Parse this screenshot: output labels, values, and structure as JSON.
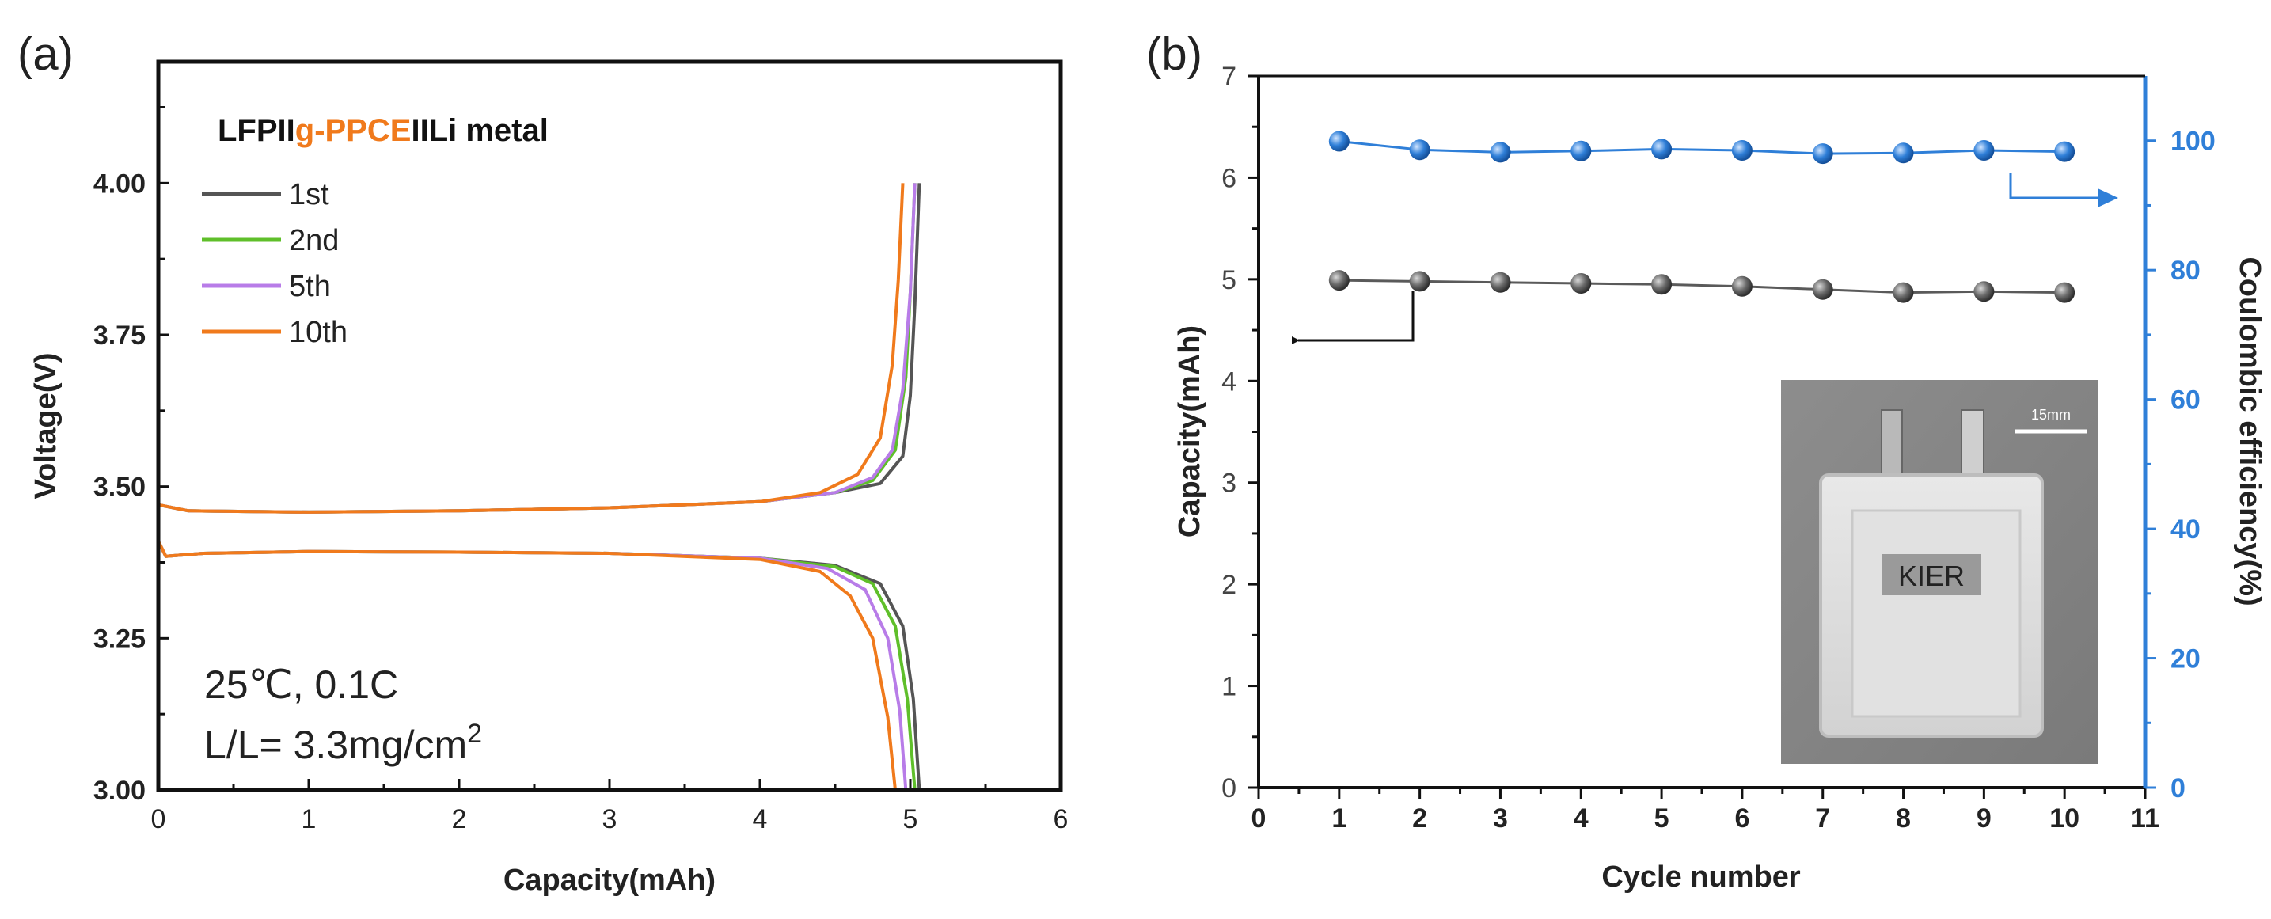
{
  "chart_data": [
    {
      "type": "line",
      "panel_label": "(a)",
      "title_parts": {
        "prefix": "LFP",
        "sep1": "II",
        "highlight": "g-PPCE",
        "sep2": "II",
        "suffix": "Li metal"
      },
      "xlabel": "Capacity(mAh)",
      "ylabel": "Voltage(V)",
      "xlim": [
        0,
        6
      ],
      "ylim": [
        3.0,
        4.2
      ],
      "xticks": [
        "0",
        "1",
        "2",
        "3",
        "4",
        "5",
        "6"
      ],
      "yticks": [
        "3.00",
        "3.25",
        "3.50",
        "3.75",
        "4.00"
      ],
      "annotation_line1": "25℃, 0.1C",
      "annotation_line2_main": "L/L= 3.3mg/cm",
      "annotation_line2_sup": "2",
      "legend_position": "top-left",
      "series": [
        {
          "name": "1st",
          "color": "#555555",
          "charge": [
            [
              0,
              3.47
            ],
            [
              0.2,
              3.46
            ],
            [
              1,
              3.458
            ],
            [
              2,
              3.46
            ],
            [
              3,
              3.465
            ],
            [
              4,
              3.475
            ],
            [
              4.5,
              3.49
            ],
            [
              4.8,
              3.505
            ],
            [
              4.95,
              3.55
            ],
            [
              5.0,
              3.65
            ],
            [
              5.03,
              3.8
            ],
            [
              5.06,
              4.0
            ]
          ],
          "discharge": [
            [
              0,
              3.41
            ],
            [
              0.05,
              3.385
            ],
            [
              0.3,
              3.39
            ],
            [
              1,
              3.393
            ],
            [
              2,
              3.392
            ],
            [
              3,
              3.39
            ],
            [
              4,
              3.382
            ],
            [
              4.5,
              3.37
            ],
            [
              4.8,
              3.34
            ],
            [
              4.95,
              3.27
            ],
            [
              5.02,
              3.15
            ],
            [
              5.06,
              3.0
            ]
          ]
        },
        {
          "name": "2nd",
          "color": "#5fbf2a",
          "charge": [
            [
              0,
              3.47
            ],
            [
              0.2,
              3.46
            ],
            [
              1,
              3.458
            ],
            [
              2,
              3.46
            ],
            [
              3,
              3.465
            ],
            [
              4,
              3.475
            ],
            [
              4.5,
              3.49
            ],
            [
              4.75,
              3.51
            ],
            [
              4.9,
              3.56
            ],
            [
              4.97,
              3.68
            ],
            [
              5.0,
              3.82
            ],
            [
              5.03,
              4.0
            ]
          ],
          "discharge": [
            [
              0,
              3.41
            ],
            [
              0.05,
              3.385
            ],
            [
              0.3,
              3.39
            ],
            [
              1,
              3.393
            ],
            [
              2,
              3.392
            ],
            [
              3,
              3.39
            ],
            [
              4,
              3.382
            ],
            [
              4.5,
              3.368
            ],
            [
              4.75,
              3.34
            ],
            [
              4.9,
              3.27
            ],
            [
              4.98,
              3.15
            ],
            [
              5.03,
              3.0
            ]
          ]
        },
        {
          "name": "5th",
          "color": "#b87ce8",
          "charge": [
            [
              0,
              3.47
            ],
            [
              0.2,
              3.46
            ],
            [
              1,
              3.458
            ],
            [
              2,
              3.46
            ],
            [
              3,
              3.465
            ],
            [
              4,
              3.475
            ],
            [
              4.5,
              3.49
            ],
            [
              4.75,
              3.515
            ],
            [
              4.88,
              3.56
            ],
            [
              4.95,
              3.66
            ],
            [
              5.0,
              3.82
            ],
            [
              5.03,
              4.0
            ]
          ],
          "discharge": [
            [
              0,
              3.41
            ],
            [
              0.05,
              3.385
            ],
            [
              0.3,
              3.39
            ],
            [
              1,
              3.393
            ],
            [
              2,
              3.392
            ],
            [
              3,
              3.39
            ],
            [
              4,
              3.382
            ],
            [
              4.45,
              3.365
            ],
            [
              4.7,
              3.33
            ],
            [
              4.85,
              3.25
            ],
            [
              4.93,
              3.13
            ],
            [
              4.97,
              3.0
            ]
          ]
        },
        {
          "name": "10th",
          "color": "#f07a1c",
          "charge": [
            [
              0,
              3.47
            ],
            [
              0.2,
              3.46
            ],
            [
              1,
              3.458
            ],
            [
              2,
              3.46
            ],
            [
              3,
              3.465
            ],
            [
              4,
              3.475
            ],
            [
              4.4,
              3.49
            ],
            [
              4.65,
              3.52
            ],
            [
              4.8,
              3.58
            ],
            [
              4.88,
              3.7
            ],
            [
              4.92,
              3.84
            ],
            [
              4.95,
              4.0
            ]
          ],
          "discharge": [
            [
              0,
              3.41
            ],
            [
              0.05,
              3.385
            ],
            [
              0.3,
              3.39
            ],
            [
              1,
              3.393
            ],
            [
              2,
              3.392
            ],
            [
              3,
              3.39
            ],
            [
              4,
              3.38
            ],
            [
              4.4,
              3.36
            ],
            [
              4.6,
              3.32
            ],
            [
              4.75,
              3.25
            ],
            [
              4.85,
              3.12
            ],
            [
              4.9,
              3.0
            ]
          ]
        }
      ]
    },
    {
      "type": "scatter",
      "panel_label": "(b)",
      "xlabel": "Cycle number",
      "ylabel_left": "Capacity(mAh)",
      "ylabel_right": "Coulombic efficiency(%)",
      "xlim": [
        0,
        11
      ],
      "ylim_left": [
        0,
        7
      ],
      "ylim_right": [
        0,
        110
      ],
      "xticks": [
        "0",
        "1",
        "2",
        "3",
        "4",
        "5",
        "6",
        "7",
        "8",
        "9",
        "10",
        "11"
      ],
      "yticks_left": [
        "0",
        "1",
        "2",
        "3",
        "4",
        "5",
        "6",
        "7"
      ],
      "yticks_right": [
        "0",
        "20",
        "40",
        "60",
        "80",
        "100"
      ],
      "x": [
        1,
        2,
        3,
        4,
        5,
        6,
        7,
        8,
        9,
        10
      ],
      "series": [
        {
          "name": "Capacity",
          "axis": "left",
          "color": "#5a5a5a",
          "values": [
            4.99,
            4.98,
            4.97,
            4.96,
            4.95,
            4.93,
            4.9,
            4.87,
            4.88,
            4.87
          ]
        },
        {
          "name": "Coulombic efficiency",
          "axis": "right",
          "color": "#2f7fd8",
          "values": [
            99.9,
            98.6,
            98.2,
            98.4,
            98.7,
            98.5,
            98.0,
            98.1,
            98.5,
            98.3
          ]
        }
      ],
      "inset": {
        "label": "KIER",
        "scale_label": "15mm"
      }
    }
  ]
}
